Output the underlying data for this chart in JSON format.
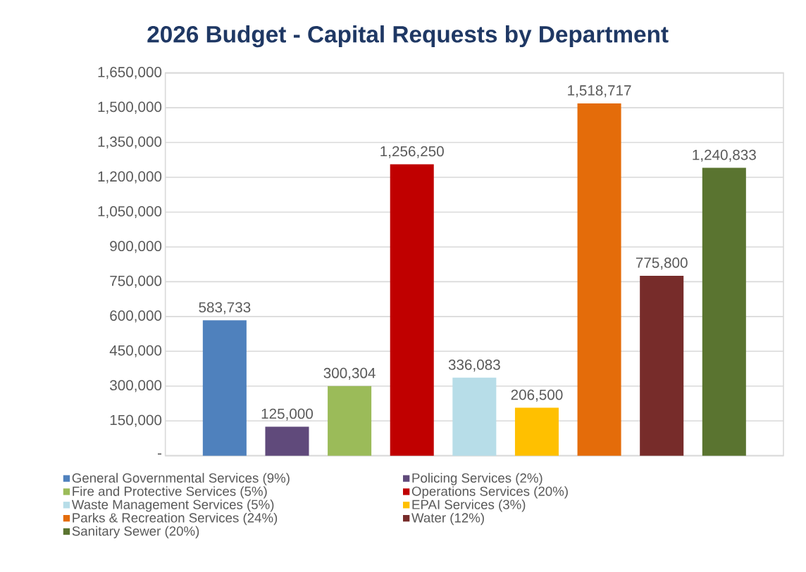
{
  "chart_data": {
    "type": "bar",
    "title": "2026 Budget - Capital Requests by Department",
    "categories": [
      null
    ],
    "series": [
      {
        "name": "General Governmental Services (9%)",
        "color": "#4f81bd",
        "values": [
          583733
        ],
        "value_labels": [
          "583,733"
        ]
      },
      {
        "name": "Policing Services (2%)",
        "color": "#604a7b",
        "values": [
          125000
        ],
        "value_labels": [
          "125,000"
        ]
      },
      {
        "name": "Fire and Protective Services (5%)",
        "color": "#9bbb59",
        "values": [
          300304
        ],
        "value_labels": [
          "300,304"
        ]
      },
      {
        "name": "Operations Services (20%)",
        "color": "#c00000",
        "values": [
          1256250
        ],
        "value_labels": [
          "1,256,250"
        ]
      },
      {
        "name": "Waste Management Services (5%)",
        "color": "#b7dde8",
        "values": [
          336083
        ],
        "value_labels": [
          "336,083"
        ]
      },
      {
        "name": "EPAI Services (3%)",
        "color": "#ffc000",
        "values": [
          206500
        ],
        "value_labels": [
          "206,500"
        ]
      },
      {
        "name": "Parks & Recreation Services (24%)",
        "color": "#e46c0a",
        "values": [
          1518717
        ],
        "value_labels": [
          "1,518,717"
        ]
      },
      {
        "name": "Water (12%)",
        "color": "#772c2a",
        "values": [
          775800
        ],
        "value_labels": [
          "775,800"
        ]
      },
      {
        "name": "Sanitary Sewer (20%)",
        "color": "#5a7430",
        "values": [
          1240833
        ],
        "value_labels": [
          "1,240,833"
        ]
      }
    ],
    "ylim": [
      0,
      1650000
    ],
    "yticks": [
      {
        "value": 0,
        "label": "-"
      },
      {
        "value": 150000,
        "label": "150,000"
      },
      {
        "value": 300000,
        "label": "300,000"
      },
      {
        "value": 450000,
        "label": "450,000"
      },
      {
        "value": 600000,
        "label": "600,000"
      },
      {
        "value": 750000,
        "label": "750,000"
      },
      {
        "value": 900000,
        "label": "900,000"
      },
      {
        "value": 1050000,
        "label": "1,050,000"
      },
      {
        "value": 1200000,
        "label": "1,200,000"
      },
      {
        "value": 1350000,
        "label": "1,350,000"
      },
      {
        "value": 1500000,
        "label": "1,500,000"
      },
      {
        "value": 1650000,
        "label": "1,650,000"
      }
    ],
    "grid": "y",
    "legend": "bottom"
  }
}
